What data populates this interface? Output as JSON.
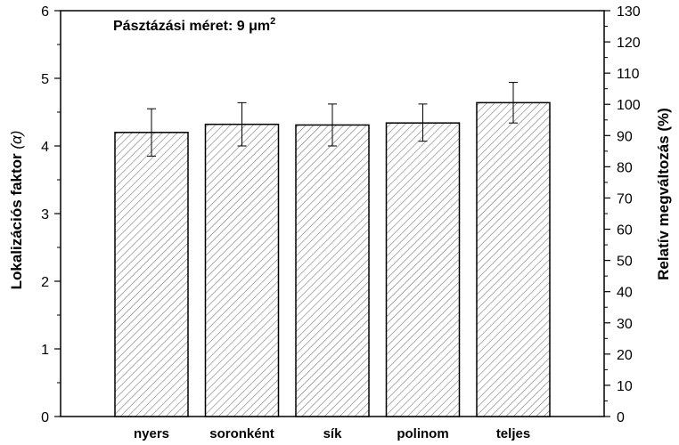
{
  "chart_data": {
    "type": "bar",
    "annotation": {
      "text": "Pásztázási méret: 9 ",
      "unit": "μm",
      "superscript": "2"
    },
    "ylabel": {
      "text": "Lokalizációs faktor ",
      "symbol": "(α)"
    },
    "y2label": "Relatív megváltozás (%)",
    "categories": [
      "nyers",
      "soronként",
      "sík",
      "polinom",
      "teljes"
    ],
    "values": [
      4.2,
      4.32,
      4.31,
      4.34,
      4.64
    ],
    "error_low": [
      3.85,
      4.0,
      4.0,
      4.07,
      4.34
    ],
    "error_high": [
      4.55,
      4.64,
      4.62,
      4.62,
      4.94
    ],
    "ylim": [
      0,
      6
    ],
    "y_ticks": [
      "0",
      "1",
      "2",
      "3",
      "4",
      "5",
      "6"
    ],
    "y2lim": [
      0,
      130
    ],
    "y2_ticks": [
      "0",
      "10",
      "20",
      "30",
      "40",
      "50",
      "60",
      "70",
      "80",
      "90",
      "100",
      "110",
      "120",
      "130"
    ],
    "bar_fill": "hatched",
    "colors": {
      "axis": "#000000",
      "bar_edge": "#000000",
      "hatch": "#7a7a7a",
      "background": "#ffffff"
    }
  }
}
